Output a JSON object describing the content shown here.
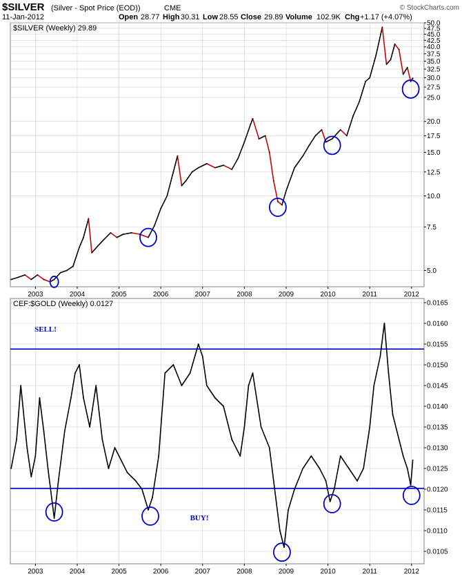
{
  "header": {
    "symbol": "$SILVER",
    "description": "(Silver - Spot Price (EOD))",
    "exchange": "CME",
    "date": "11-Jan-2012",
    "open_label": "Open",
    "open": "28.77",
    "high_label": "High",
    "high": "30.31",
    "low_label": "Low",
    "low": "28.55",
    "close_label": "Close",
    "close": "29.89",
    "volume_label": "Volume",
    "volume": "102.9K",
    "chg_label": "Chg",
    "chg": "+1.17 (+4.07%)",
    "brand": "© StockCharts.com"
  },
  "colors": {
    "up": "#000000",
    "down": "#cc0000",
    "annotation": "#0000cc",
    "grid": "#d0d0d0"
  },
  "chart_data": [
    {
      "type": "line",
      "legend": "$SILVER (Weekly) 29.89",
      "yscale": "log",
      "ylim": [
        4.3,
        50.0
      ],
      "yticks": [
        5.0,
        7.5,
        10.0,
        12.5,
        15.0,
        17.5,
        20.0,
        25.0,
        27.5,
        30.0,
        32.5,
        35.0,
        37.5,
        40.0,
        42.5,
        45.0,
        47.5,
        50.0
      ],
      "ytick_labels": [
        "5.0",
        "7.5",
        "10.0",
        "12.5",
        "15.0",
        "17.5",
        "20.0",
        "25.0",
        "27.5",
        "30.0",
        "32.5",
        "35.0",
        "37.5",
        "40.0",
        "42.5",
        "45.0",
        "47.5",
        "50.0"
      ],
      "xlim": [
        2002.4,
        2012.3
      ],
      "xticks": [
        2003,
        2004,
        2005,
        2006,
        2007,
        2008,
        2009,
        2010,
        2011,
        2012
      ],
      "xtick_labels": [
        "2003",
        "2004",
        "2005",
        "2006",
        "2007",
        "2008",
        "2009",
        "2010",
        "2011",
        "2012"
      ],
      "x": [
        2002.42,
        2002.6,
        2002.75,
        2002.9,
        2003.05,
        2003.2,
        2003.35,
        2003.45,
        2003.6,
        2003.75,
        2003.9,
        2004.05,
        2004.15,
        2004.27,
        2004.35,
        2004.5,
        2004.65,
        2004.8,
        2004.95,
        2005.1,
        2005.3,
        2005.5,
        2005.7,
        2005.85,
        2006.0,
        2006.15,
        2006.3,
        2006.4,
        2006.5,
        2006.6,
        2006.75,
        2006.9,
        2007.1,
        2007.3,
        2007.5,
        2007.7,
        2007.85,
        2008.0,
        2008.15,
        2008.2,
        2008.35,
        2008.5,
        2008.6,
        2008.7,
        2008.8,
        2008.9,
        2009.0,
        2009.2,
        2009.4,
        2009.55,
        2009.7,
        2009.85,
        2009.95,
        2010.1,
        2010.3,
        2010.45,
        2010.6,
        2010.75,
        2010.9,
        2011.0,
        2011.15,
        2011.3,
        2011.4,
        2011.5,
        2011.6,
        2011.7,
        2011.8,
        2011.9,
        2011.98,
        2012.03
      ],
      "values": [
        4.6,
        4.7,
        4.8,
        4.6,
        4.8,
        4.6,
        4.5,
        4.6,
        4.9,
        5.0,
        5.2,
        6.2,
        6.8,
        8.1,
        5.9,
        6.3,
        6.7,
        7.1,
        6.8,
        7.0,
        7.1,
        7.0,
        6.8,
        7.6,
        8.9,
        10.0,
        12.5,
        14.5,
        11.0,
        11.5,
        12.5,
        13.0,
        13.5,
        13.0,
        13.3,
        12.8,
        14.2,
        16.5,
        19.5,
        20.5,
        17.0,
        17.5,
        15.0,
        11.5,
        9.5,
        9.2,
        10.5,
        13.0,
        14.5,
        16.0,
        17.5,
        18.5,
        16.5,
        17.0,
        18.5,
        17.5,
        21.0,
        24.0,
        29.0,
        30.0,
        37.0,
        48.0,
        34.0,
        35.5,
        41.0,
        39.0,
        31.0,
        33.0,
        29.0,
        29.89
      ],
      "annotations": [
        {
          "type": "circle",
          "x": 2003.45,
          "y": 4.5
        },
        {
          "type": "circle",
          "x": 2005.7,
          "y": 6.8
        },
        {
          "type": "circle",
          "x": 2008.8,
          "y": 9.0
        },
        {
          "type": "circle",
          "x": 2010.1,
          "y": 16.0
        },
        {
          "type": "circle",
          "x": 2011.98,
          "y": 27.0
        }
      ]
    },
    {
      "type": "line",
      "legend": "CEF:$GOLD (Weekly) 0.0127",
      "yscale": "linear",
      "ylim": [
        0.0102,
        0.0166
      ],
      "yticks": [
        0.0105,
        0.011,
        0.0115,
        0.012,
        0.0125,
        0.013,
        0.0135,
        0.014,
        0.0145,
        0.015,
        0.0155,
        0.016,
        0.0165
      ],
      "ytick_labels": [
        "0.0105",
        "0.0110",
        "0.0115",
        "0.0120",
        "0.0125",
        "0.0130",
        "0.0135",
        "0.0140",
        "0.0145",
        "0.0150",
        "0.0155",
        "0.0160",
        "0.0165"
      ],
      "xlim": [
        2002.4,
        2012.3
      ],
      "xticks": [
        2003,
        2004,
        2005,
        2006,
        2007,
        2008,
        2009,
        2010,
        2011,
        2012
      ],
      "xtick_labels": [
        "2003",
        "2004",
        "2005",
        "2006",
        "2007",
        "2008",
        "2009",
        "2010",
        "2011",
        "2012"
      ],
      "x": [
        2002.42,
        2002.55,
        2002.65,
        2002.8,
        2002.9,
        2003.0,
        2003.1,
        2003.2,
        2003.3,
        2003.4,
        2003.45,
        2003.55,
        2003.7,
        2003.85,
        2003.95,
        2004.05,
        2004.15,
        2004.3,
        2004.45,
        2004.6,
        2004.75,
        2004.9,
        2005.0,
        2005.2,
        2005.4,
        2005.55,
        2005.7,
        2005.8,
        2005.95,
        2006.1,
        2006.3,
        2006.5,
        2006.7,
        2006.9,
        2007.0,
        2007.1,
        2007.3,
        2007.5,
        2007.7,
        2007.9,
        2008.0,
        2008.1,
        2008.2,
        2008.4,
        2008.6,
        2008.75,
        2008.85,
        2008.95,
        2009.05,
        2009.2,
        2009.4,
        2009.6,
        2009.8,
        2009.95,
        2010.05,
        2010.15,
        2010.3,
        2010.5,
        2010.7,
        2010.85,
        2011.0,
        2011.1,
        2011.25,
        2011.35,
        2011.45,
        2011.55,
        2011.7,
        2011.8,
        2011.9,
        2011.98,
        2012.03
      ],
      "values": [
        0.0125,
        0.0132,
        0.0145,
        0.013,
        0.0123,
        0.0128,
        0.0142,
        0.0134,
        0.0125,
        0.0117,
        0.0113,
        0.0122,
        0.0134,
        0.0142,
        0.0148,
        0.015,
        0.0142,
        0.0135,
        0.0145,
        0.0132,
        0.0125,
        0.013,
        0.0128,
        0.0124,
        0.0122,
        0.012,
        0.0115,
        0.0118,
        0.0128,
        0.0148,
        0.015,
        0.0145,
        0.0148,
        0.0155,
        0.0152,
        0.0145,
        0.0142,
        0.014,
        0.0132,
        0.0128,
        0.0135,
        0.0145,
        0.0148,
        0.0135,
        0.013,
        0.0118,
        0.011,
        0.0106,
        0.0115,
        0.012,
        0.0125,
        0.0128,
        0.0125,
        0.0122,
        0.0117,
        0.012,
        0.0128,
        0.0125,
        0.0122,
        0.0125,
        0.0135,
        0.0145,
        0.0152,
        0.016,
        0.0148,
        0.0138,
        0.0132,
        0.0128,
        0.0125,
        0.0121,
        0.0127
      ],
      "hlines": [
        0.01538,
        0.01202
      ],
      "text_annotations": [
        {
          "text": "SELL!",
          "x": 2002.98,
          "y": 0.0158
        },
        {
          "text": "BUY!",
          "x": 2006.7,
          "y": 0.01125
        }
      ],
      "annotations": [
        {
          "type": "circle",
          "x": 2003.45,
          "y": 0.01145
        },
        {
          "type": "circle",
          "x": 2005.75,
          "y": 0.01135
        },
        {
          "type": "circle",
          "x": 2008.9,
          "y": 0.01048
        },
        {
          "type": "circle",
          "x": 2010.1,
          "y": 0.01165
        },
        {
          "type": "circle",
          "x": 2012.0,
          "y": 0.01185
        }
      ]
    }
  ]
}
